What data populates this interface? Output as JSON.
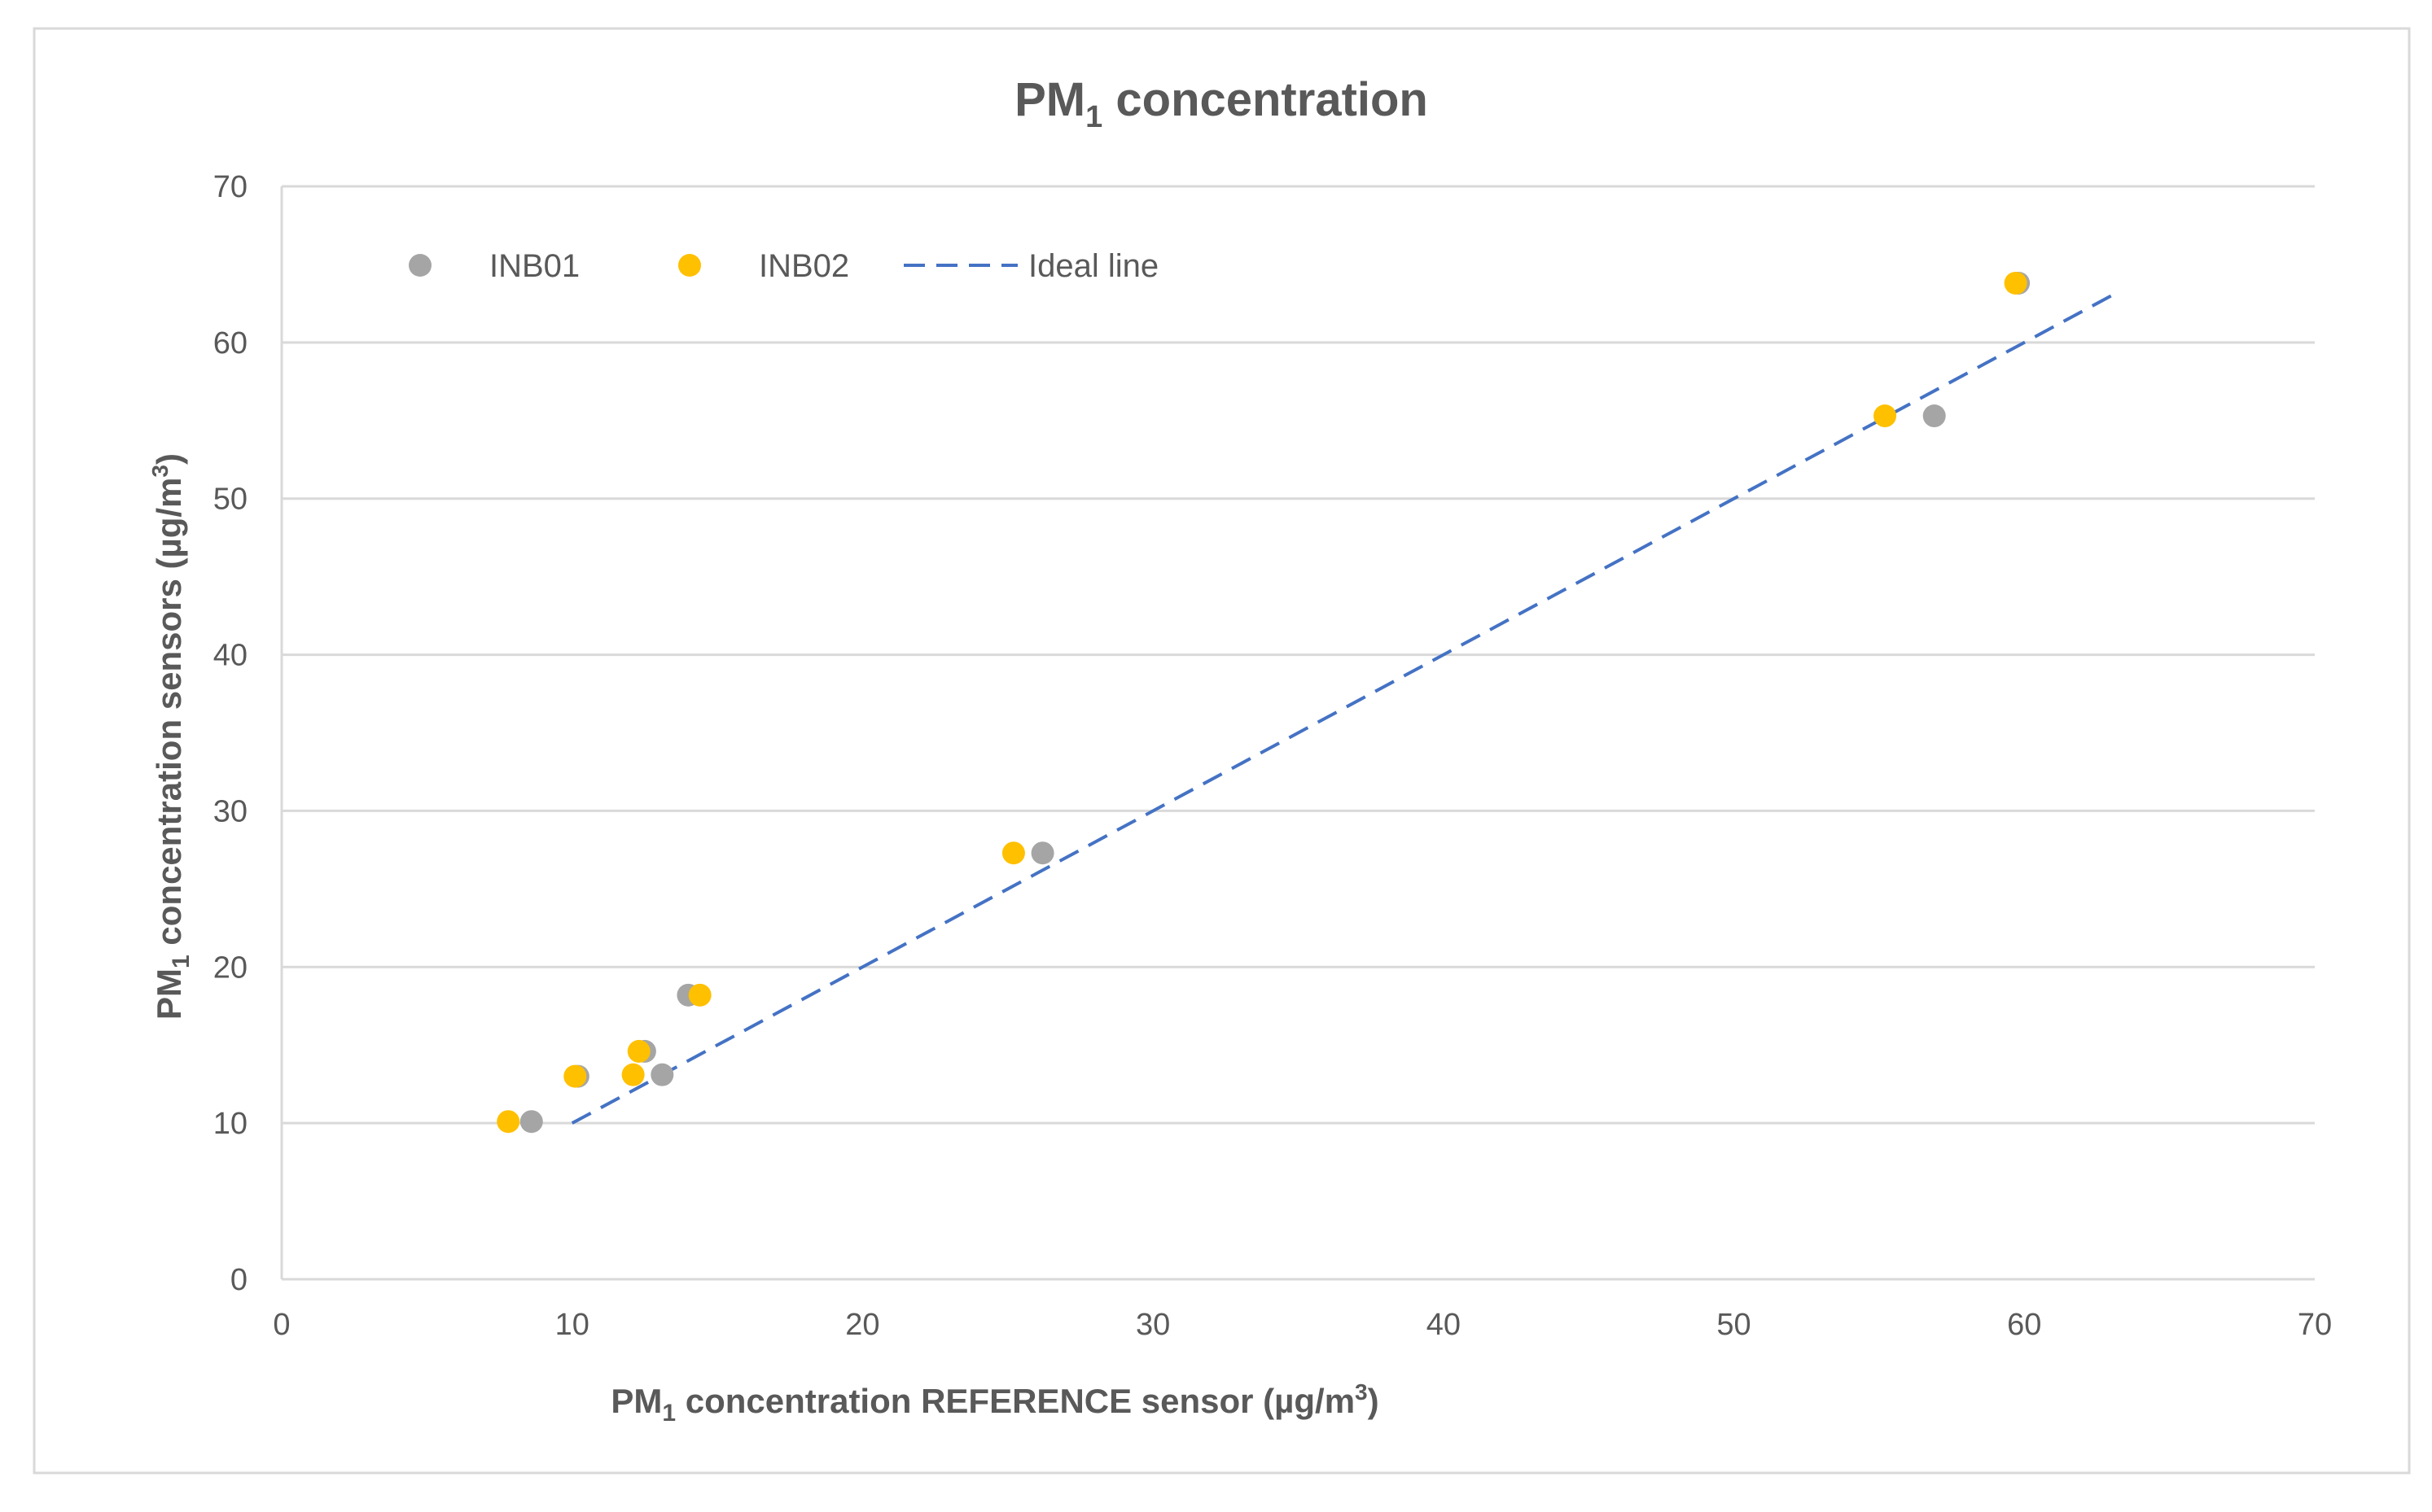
{
  "chart_data": {
    "type": "scatter",
    "title": {
      "main": "PM",
      "sub": "1",
      "rest": " concentration"
    },
    "xlabel": {
      "main": "PM",
      "sub": "1",
      "rest": " concentration  REFERENCE sensor  (µg/m",
      "sup": "3",
      "end": ")"
    },
    "ylabel": {
      "main": "PM",
      "sub": "1",
      "rest": " concentration sensors (µg/m",
      "sup": "3",
      "end": ")"
    },
    "xlim": [
      0,
      70
    ],
    "ylim": [
      0,
      70
    ],
    "xticks": [
      "0",
      "10",
      "20",
      "30",
      "40",
      "50",
      "60",
      "70"
    ],
    "yticks": [
      "0",
      "10",
      "20",
      "30",
      "40",
      "50",
      "60",
      "70"
    ],
    "grid": "horizontal",
    "legend_position": "top-left",
    "series": [
      {
        "name": "INB01",
        "color": "#a5a5a5",
        "points": [
          [
            8.6,
            10.1
          ],
          [
            10.2,
            13.0
          ],
          [
            12.5,
            14.6
          ],
          [
            13.1,
            13.1
          ],
          [
            14.0,
            18.2
          ],
          [
            26.2,
            27.3
          ],
          [
            56.9,
            55.3
          ],
          [
            59.8,
            63.8
          ]
        ]
      },
      {
        "name": "INB02",
        "color": "#ffc000",
        "points": [
          [
            7.8,
            10.1
          ],
          [
            10.1,
            13.0
          ],
          [
            12.3,
            14.6
          ],
          [
            12.1,
            13.1
          ],
          [
            14.4,
            18.2
          ],
          [
            25.2,
            27.3
          ],
          [
            55.2,
            55.3
          ],
          [
            59.7,
            63.8
          ]
        ]
      }
    ],
    "ideal_line": {
      "name": "Ideal line",
      "color": "#4472c4",
      "from": [
        10,
        10
      ],
      "to": [
        63.3,
        63.3
      ]
    }
  }
}
